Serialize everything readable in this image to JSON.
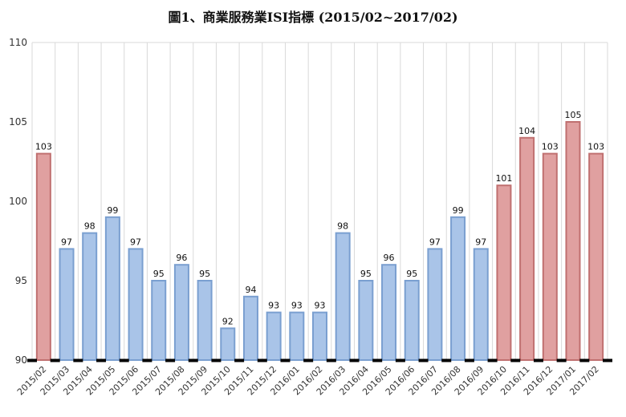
{
  "chart_data": {
    "type": "bar",
    "title": "圖1、商業服務業ISI指標 (2015/02~2017/02)",
    "xlabel": "",
    "ylabel": "",
    "ylim": [
      90,
      110
    ],
    "yticks": [
      90,
      95,
      100,
      105,
      110
    ],
    "grid": "vertical",
    "legend": "none",
    "categories": [
      "2015/02",
      "2015/03",
      "2015/04",
      "2015/05",
      "2015/06",
      "2015/07",
      "2015/08",
      "2015/09",
      "2015/10",
      "2015/11",
      "2015/12",
      "2016/01",
      "2016/02",
      "2016/03",
      "2016/04",
      "2016/05",
      "2016/06",
      "2016/07",
      "2016/08",
      "2016/09",
      "2016/10",
      "2016/11",
      "2016/12",
      "2017/01",
      "2017/02"
    ],
    "values": [
      103,
      97,
      98,
      99,
      97,
      95,
      96,
      95,
      92,
      94,
      93,
      93,
      93,
      98,
      95,
      96,
      95,
      97,
      99,
      97,
      101,
      104,
      103,
      105,
      103
    ],
    "colors": {
      "red_fill": "#e0a0a0",
      "red_stroke": "#c07070",
      "blue_fill": "#a9c4e8",
      "blue_stroke": "#7a9fd0",
      "grid": "#d9d9d9",
      "axis_marker": "#000000"
    },
    "red_categories": [
      "2015/02",
      "2016/10",
      "2016/11",
      "2016/12",
      "2017/01",
      "2017/02"
    ]
  }
}
